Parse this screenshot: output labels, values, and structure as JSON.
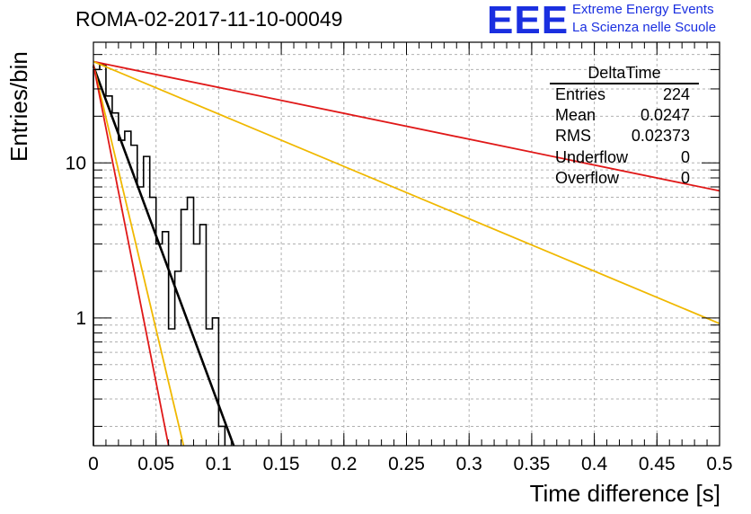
{
  "header": {
    "title": "ROMA-02-2017-11-10-00049",
    "logo_text": "EEE",
    "logo_line1": "Extreme Energy Events",
    "logo_line2": "La Scienza nelle Scuole"
  },
  "stats_box": {
    "title": "DeltaTime",
    "rows": [
      {
        "label": "Entries",
        "value": "224"
      },
      {
        "label": "Mean",
        "value": "0.0247"
      },
      {
        "label": "RMS",
        "value": "0.02373"
      },
      {
        "label": "Underflow",
        "value": "0"
      },
      {
        "label": "Overflow",
        "value": "0"
      }
    ]
  },
  "chart_data": {
    "type": "bar",
    "histogram": true,
    "xlabel": "Time difference [s]",
    "ylabel": "Entries/bin",
    "xlim": [
      0,
      0.5
    ],
    "ylim": [
      0.15,
      60
    ],
    "yscale": "log",
    "grid": true,
    "bin_width": 0.005,
    "bins": [
      {
        "x": 0.0,
        "y": 40
      },
      {
        "x": 0.005,
        "y": 43
      },
      {
        "x": 0.01,
        "y": 27
      },
      {
        "x": 0.015,
        "y": 21
      },
      {
        "x": 0.02,
        "y": 14
      },
      {
        "x": 0.025,
        "y": 16
      },
      {
        "x": 0.03,
        "y": 13
      },
      {
        "x": 0.035,
        "y": 7
      },
      {
        "x": 0.04,
        "y": 11
      },
      {
        "x": 0.045,
        "y": 6
      },
      {
        "x": 0.05,
        "y": 3
      },
      {
        "x": 0.055,
        "y": 3.6
      },
      {
        "x": 0.06,
        "y": 0.85
      },
      {
        "x": 0.065,
        "y": 2
      },
      {
        "x": 0.07,
        "y": 5
      },
      {
        "x": 0.075,
        "y": 6
      },
      {
        "x": 0.08,
        "y": 3
      },
      {
        "x": 0.085,
        "y": 4
      },
      {
        "x": 0.09,
        "y": 0.85
      },
      {
        "x": 0.095,
        "y": 1
      },
      {
        "x": 0.1,
        "y": 0.2
      }
    ],
    "xticks": [
      "0",
      "0.05",
      "0.1",
      "0.15",
      "0.2",
      "0.25",
      "0.3",
      "0.35",
      "0.4",
      "0.45",
      "0.5"
    ],
    "xtick_values": [
      0,
      0.05,
      0.1,
      0.15,
      0.2,
      0.25,
      0.3,
      0.35,
      0.4,
      0.45,
      0.5
    ],
    "yticks": [
      "1",
      "10"
    ],
    "ytick_values": [
      1,
      10
    ],
    "fit_lines": [
      {
        "color": "#e01818",
        "x": [
          0.0,
          0.5
        ],
        "y": [
          45,
          6.6
        ]
      },
      {
        "color": "#f0b800",
        "x": [
          0.0,
          0.5
        ],
        "y": [
          45,
          0.92
        ]
      },
      {
        "color": "#000000",
        "x": [
          0.0,
          0.112
        ],
        "y": [
          42,
          0.15
        ]
      },
      {
        "color": "#f0b800",
        "x": [
          0.0,
          0.072
        ],
        "y": [
          43,
          0.15
        ]
      },
      {
        "color": "#e01818",
        "x": [
          0.0,
          0.06
        ],
        "y": [
          43,
          0.15
        ]
      }
    ]
  }
}
